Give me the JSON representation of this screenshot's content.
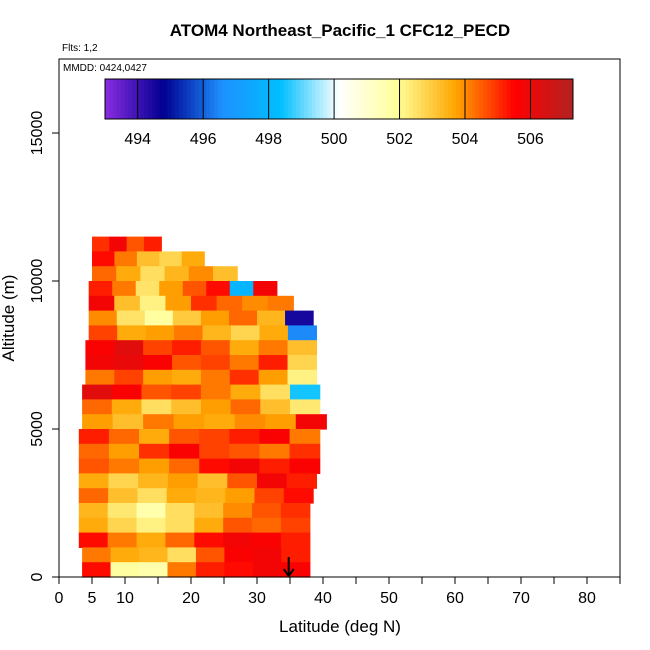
{
  "chart_data": {
    "type": "heatmap",
    "title": "ATOM4 Northeast_Pacific_1 CFC12_PECD",
    "flights_label": "Flts: 1,2",
    "dates_label": "MMDD: 0424,0427",
    "xlabel": "Latitude (deg N)",
    "ylabel": "Altitude (m)",
    "xlim": [
      0,
      85
    ],
    "ylim": [
      0,
      17500
    ],
    "x_ticks": [
      0,
      5,
      10,
      20,
      30,
      40,
      50,
      60,
      70,
      80
    ],
    "x_minor_ticks": [
      15,
      25,
      35,
      45,
      55,
      65,
      75,
      85
    ],
    "y_ticks": [
      0,
      5000,
      10000,
      15000
    ],
    "colorbar": {
      "range": [
        493,
        507.3
      ],
      "ticks": [
        494,
        496,
        498,
        500,
        502,
        504,
        506
      ],
      "colors": [
        "#8a2be2",
        "#000090",
        "#1e90ff",
        "#00bfff",
        "#ffffff",
        "#ffff99",
        "#ffa500",
        "#ff0000",
        "#b22222"
      ]
    },
    "arrow_marker": {
      "latitude": 34.8,
      "altitude": 0
    },
    "profile_bands": [
      {
        "alt0": 11000,
        "alt1": 11500,
        "lat0": 5.0,
        "lat1": 15.5,
        "values": [
          505.0,
          505.8,
          504.6,
          505.2
        ]
      },
      {
        "alt0": 10500,
        "alt1": 11000,
        "lat0": 5.0,
        "lat1": 22.0,
        "values": [
          505.4,
          504.2,
          503.2,
          502.8,
          503.6
        ]
      },
      {
        "alt0": 10000,
        "alt1": 10500,
        "lat0": 5.0,
        "lat1": 27.0,
        "values": [
          504.4,
          503.6,
          502.6,
          503.4,
          504.0,
          503.2
        ]
      },
      {
        "alt0": 9500,
        "alt1": 10000,
        "lat0": 4.5,
        "lat1": 33.0,
        "values": [
          505.2,
          504.2,
          502.5,
          503.8,
          504.6,
          505.4,
          498.0,
          505.8
        ]
      },
      {
        "alt0": 9000,
        "alt1": 9500,
        "lat0": 4.5,
        "lat1": 35.5,
        "values": [
          505.8,
          503.2,
          502.2,
          503.8,
          505.0,
          504.4,
          504.0,
          504.2
        ]
      },
      {
        "alt0": 8500,
        "alt1": 9000,
        "lat0": 4.5,
        "lat1": 38.5,
        "values": [
          504.0,
          502.5,
          501.8,
          503.0,
          503.8,
          504.4,
          503.4,
          494.5
        ]
      },
      {
        "alt0": 8000,
        "alt1": 8500,
        "lat0": 4.5,
        "lat1": 39.0,
        "values": [
          504.8,
          503.6,
          503.8,
          504.2,
          503.4,
          502.8,
          503.6,
          496.5
        ]
      },
      {
        "alt0": 7500,
        "alt1": 8000,
        "lat0": 4.0,
        "lat1": 39.0,
        "values": [
          505.6,
          506.2,
          504.8,
          505.2,
          504.6,
          503.6,
          504.2,
          503.2
        ]
      },
      {
        "alt0": 7000,
        "alt1": 7500,
        "lat0": 4.0,
        "lat1": 39.0,
        "values": [
          505.8,
          506.0,
          505.6,
          504.6,
          504.8,
          504.2,
          505.2,
          502.8
        ]
      },
      {
        "alt0": 6500,
        "alt1": 7000,
        "lat0": 4.0,
        "lat1": 39.0,
        "values": [
          504.2,
          504.8,
          503.8,
          503.6,
          504.2,
          505.0,
          503.8,
          502.2
        ]
      },
      {
        "alt0": 6000,
        "alt1": 6500,
        "lat0": 3.5,
        "lat1": 39.5,
        "values": [
          506.2,
          505.6,
          504.6,
          504.8,
          504.2,
          503.6,
          502.6,
          498.5
        ]
      },
      {
        "alt0": 5500,
        "alt1": 6000,
        "lat0": 3.5,
        "lat1": 39.5,
        "values": [
          504.4,
          503.6,
          502.6,
          503.2,
          503.8,
          504.4,
          503.2,
          502.4
        ]
      },
      {
        "alt0": 5000,
        "alt1": 5500,
        "lat0": 3.5,
        "lat1": 40.5,
        "values": [
          503.8,
          503.2,
          504.2,
          503.8,
          503.6,
          504.0,
          503.8,
          505.8
        ]
      },
      {
        "alt0": 4500,
        "alt1": 5000,
        "lat0": 3.0,
        "lat1": 39.5,
        "values": [
          505.2,
          504.4,
          503.6,
          504.6,
          504.8,
          505.2,
          505.6,
          504.2
        ]
      },
      {
        "alt0": 4000,
        "alt1": 4500,
        "lat0": 3.0,
        "lat1": 39.5,
        "values": [
          504.4,
          503.8,
          505.0,
          505.6,
          504.8,
          504.6,
          504.2,
          505.0
        ]
      },
      {
        "alt0": 3500,
        "alt1": 4000,
        "lat0": 3.0,
        "lat1": 39.5,
        "values": [
          504.6,
          504.2,
          503.8,
          504.4,
          505.4,
          505.8,
          505.2,
          505.6
        ]
      },
      {
        "alt0": 3000,
        "alt1": 3500,
        "lat0": 3.0,
        "lat1": 39.0,
        "values": [
          503.6,
          502.8,
          503.4,
          503.8,
          503.2,
          504.6,
          505.8,
          505.2
        ]
      },
      {
        "alt0": 2500,
        "alt1": 3000,
        "lat0": 3.0,
        "lat1": 38.5,
        "values": [
          504.4,
          503.2,
          502.6,
          503.6,
          503.4,
          503.8,
          504.8,
          505.4
        ]
      },
      {
        "alt0": 2000,
        "alt1": 2500,
        "lat0": 3.0,
        "lat1": 38.0,
        "values": [
          503.4,
          502.4,
          501.6,
          502.6,
          503.2,
          504.0,
          504.6,
          505.0
        ]
      },
      {
        "alt0": 1500,
        "alt1": 2000,
        "lat0": 3.0,
        "lat1": 38.0,
        "values": [
          503.6,
          502.8,
          502.2,
          502.6,
          503.6,
          504.6,
          504.4,
          504.8
        ]
      },
      {
        "alt0": 1000,
        "alt1": 1500,
        "lat0": 3.0,
        "lat1": 38.0,
        "values": [
          505.4,
          504.2,
          503.6,
          504.4,
          505.4,
          505.8,
          505.6,
          505.2
        ]
      },
      {
        "alt0": 500,
        "alt1": 1000,
        "lat0": 3.5,
        "lat1": 38.0,
        "values": [
          504.2,
          503.6,
          503.4,
          502.6,
          504.6,
          505.6,
          505.8,
          505.2
        ]
      },
      {
        "alt0": 0,
        "alt1": 500,
        "lat0": 3.5,
        "lat1": 38.0,
        "values": [
          505.4,
          501.8,
          501.6,
          504.2,
          505.2,
          505.4,
          505.8,
          505.6
        ]
      }
    ]
  }
}
